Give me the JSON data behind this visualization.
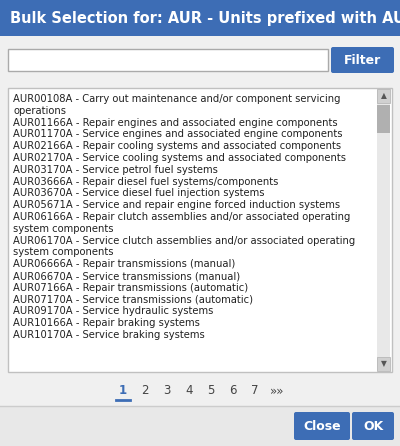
{
  "title": "Bulk Selection for: AUR - Units prefixed with AUR",
  "title_bg": "#3d6db5",
  "title_fg": "#ffffff",
  "title_fontsize": 10.5,
  "dialog_bg": "#f0f0f0",
  "listbox_bg": "#ffffff",
  "listbox_border": "#c0c0c0",
  "filter_btn_color": "#3d6db5",
  "filter_btn_text": "Filter",
  "filter_btn_fg": "#ffffff",
  "search_box_bg": "#ffffff",
  "search_box_border": "#aaaaaa",
  "items": [
    "AUR00108A - Carry out maintenance and/or component servicing\noperations",
    "AUR01166A - Repair engines and associated engine components",
    "AUR01170A - Service engines and associated engine components",
    "AUR02166A - Repair cooling systems and associated components",
    "AUR02170A - Service cooling systems and associated components",
    "AUR03170A - Service petrol fuel systems",
    "AUR03666A - Repair diesel fuel systems/components",
    "AUR03670A - Service diesel fuel injection systems",
    "AUR05671A - Service and repair engine forced induction systems",
    "AUR06166A - Repair clutch assemblies and/or associated operating\nsystem components",
    "AUR06170A - Service clutch assemblies and/or associated operating\nsystem components",
    "AUR06666A - Repair transmissions (manual)",
    "AUR06670A - Service transmissions (manual)",
    "AUR07166A - Repair transmissions (automatic)",
    "AUR07170A - Service transmissions (automatic)",
    "AUR09170A - Service hydraulic systems",
    "AUR10166A - Repair braking systems",
    "AUR10170A - Service braking systems"
  ],
  "pagination": [
    "1",
    "2",
    "3",
    "4",
    "5",
    "6",
    "7",
    "»»"
  ],
  "active_page": "1",
  "active_page_color": "#3d6db5",
  "page_color": "#444444",
  "close_btn_text": "Close",
  "ok_btn_text": "OK",
  "btn_color": "#3d6db5",
  "btn_fg": "#ffffff",
  "item_fontsize": 7.2,
  "pagination_fontsize": 8.5,
  "item_color": "#222222"
}
